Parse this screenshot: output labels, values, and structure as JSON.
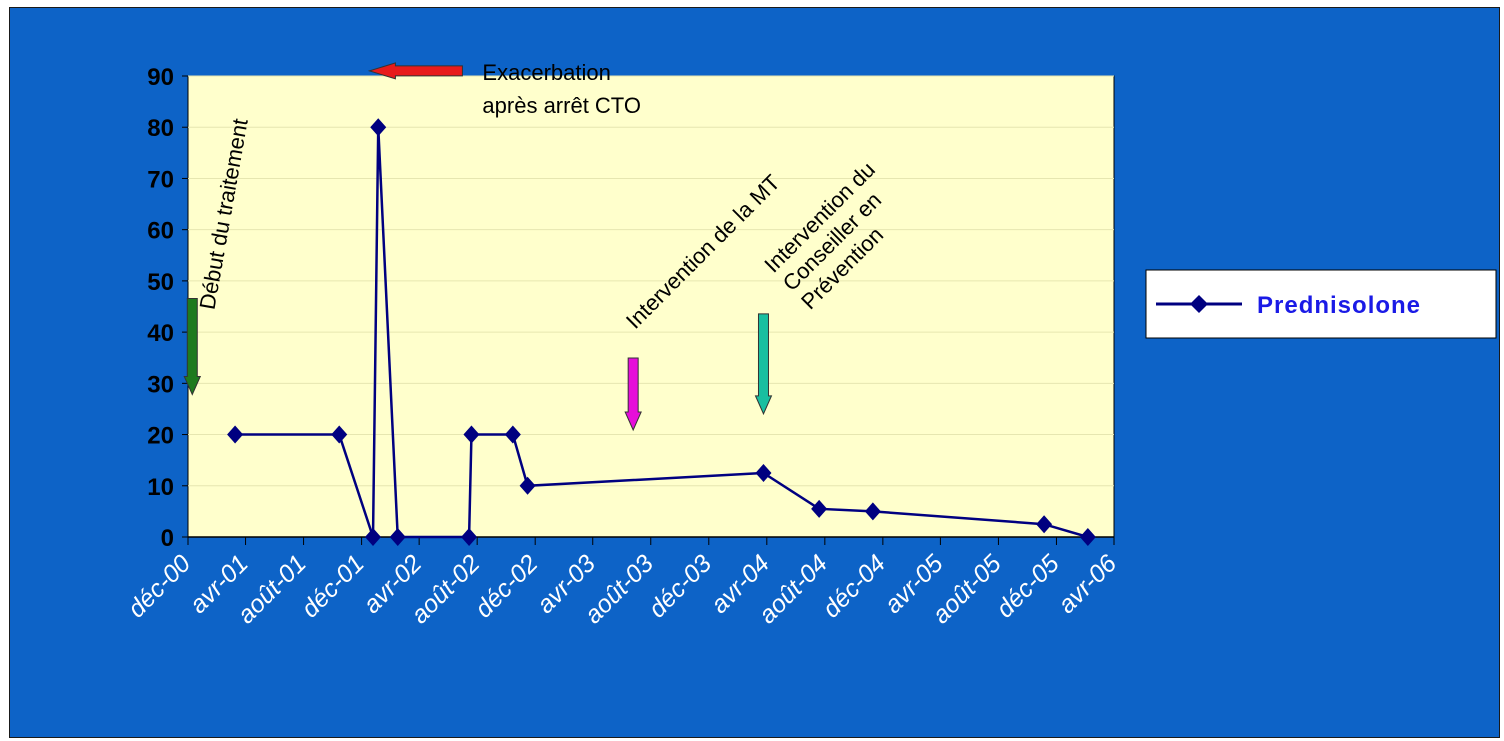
{
  "chart_data": {
    "type": "line",
    "title": "",
    "xlabel": "",
    "ylabel": "",
    "ylim": [
      0,
      90
    ],
    "xlim": [
      "2000-12-01",
      "2006-04-01"
    ],
    "y_ticks": [
      "0",
      "10",
      "20",
      "30",
      "40",
      "50",
      "60",
      "70",
      "80",
      "90"
    ],
    "x_ticks": [
      {
        "label": "déc-00",
        "date": "2000-12-01"
      },
      {
        "label": "avr-01",
        "date": "2001-04-01"
      },
      {
        "label": "août-01",
        "date": "2001-08-01"
      },
      {
        "label": "déc-01",
        "date": "2001-12-01"
      },
      {
        "label": "avr-02",
        "date": "2002-04-01"
      },
      {
        "label": "août-02",
        "date": "2002-08-01"
      },
      {
        "label": "déc-02",
        "date": "2002-12-01"
      },
      {
        "label": "avr-03",
        "date": "2003-04-01"
      },
      {
        "label": "août-03",
        "date": "2003-08-01"
      },
      {
        "label": "déc-03",
        "date": "2003-12-01"
      },
      {
        "label": "avr-04",
        "date": "2004-04-01"
      },
      {
        "label": "août-04",
        "date": "2004-08-01"
      },
      {
        "label": "déc-04",
        "date": "2004-12-01"
      },
      {
        "label": "avr-05",
        "date": "2005-04-01"
      },
      {
        "label": "août-05",
        "date": "2005-08-01"
      },
      {
        "label": "déc-05",
        "date": "2005-12-01"
      },
      {
        "label": "avr-06",
        "date": "2006-04-01"
      }
    ],
    "grid": true,
    "legend_position": "right",
    "series": [
      {
        "name": "Prednisolone",
        "color": "#000080",
        "marker": "diamond",
        "points": [
          {
            "x": "2001-03-10",
            "y": 20
          },
          {
            "x": "2001-10-15",
            "y": 20
          },
          {
            "x": "2001-12-25",
            "y": 0
          },
          {
            "x": "2002-01-05",
            "y": 80
          },
          {
            "x": "2002-02-15",
            "y": 0
          },
          {
            "x": "2002-07-15",
            "y": 0
          },
          {
            "x": "2002-07-20",
            "y": 20
          },
          {
            "x": "2002-10-15",
            "y": 20
          },
          {
            "x": "2002-11-15",
            "y": 10
          },
          {
            "x": "2004-03-25",
            "y": 12.5
          },
          {
            "x": "2004-07-20",
            "y": 5.5
          },
          {
            "x": "2004-11-10",
            "y": 5
          },
          {
            "x": "2005-11-05",
            "y": 2.5
          },
          {
            "x": "2006-02-05",
            "y": 0
          }
        ]
      }
    ],
    "annotations": [
      {
        "id": "debut",
        "text": "Début du traitement",
        "x": "2000-12-10",
        "y": 45,
        "arrow_direction": "down",
        "arrow_color": "#1e7a1e"
      },
      {
        "id": "exacerbation",
        "lines": [
          "Exacerbation",
          "après arrêt CTO"
        ],
        "x": "2002-07-01",
        "y": 91,
        "arrow_direction": "left",
        "arrow_color": "#e81b1b"
      },
      {
        "id": "mt",
        "text": "Intervention  de la MT",
        "x": "2003-06-25",
        "y": 33,
        "arrow_direction": "down",
        "arrow_color": "#e60ed9"
      },
      {
        "id": "conseiller",
        "lines": [
          "Intervention du",
          "Conseiller en",
          "Prévention"
        ],
        "x": "2004-03-25",
        "y": 42,
        "arrow_direction": "down",
        "arrow_color": "#19bfa0"
      }
    ],
    "colors": {
      "background": "#0d63c7",
      "plot_area": "#ffffcc",
      "line": "#000080"
    }
  }
}
